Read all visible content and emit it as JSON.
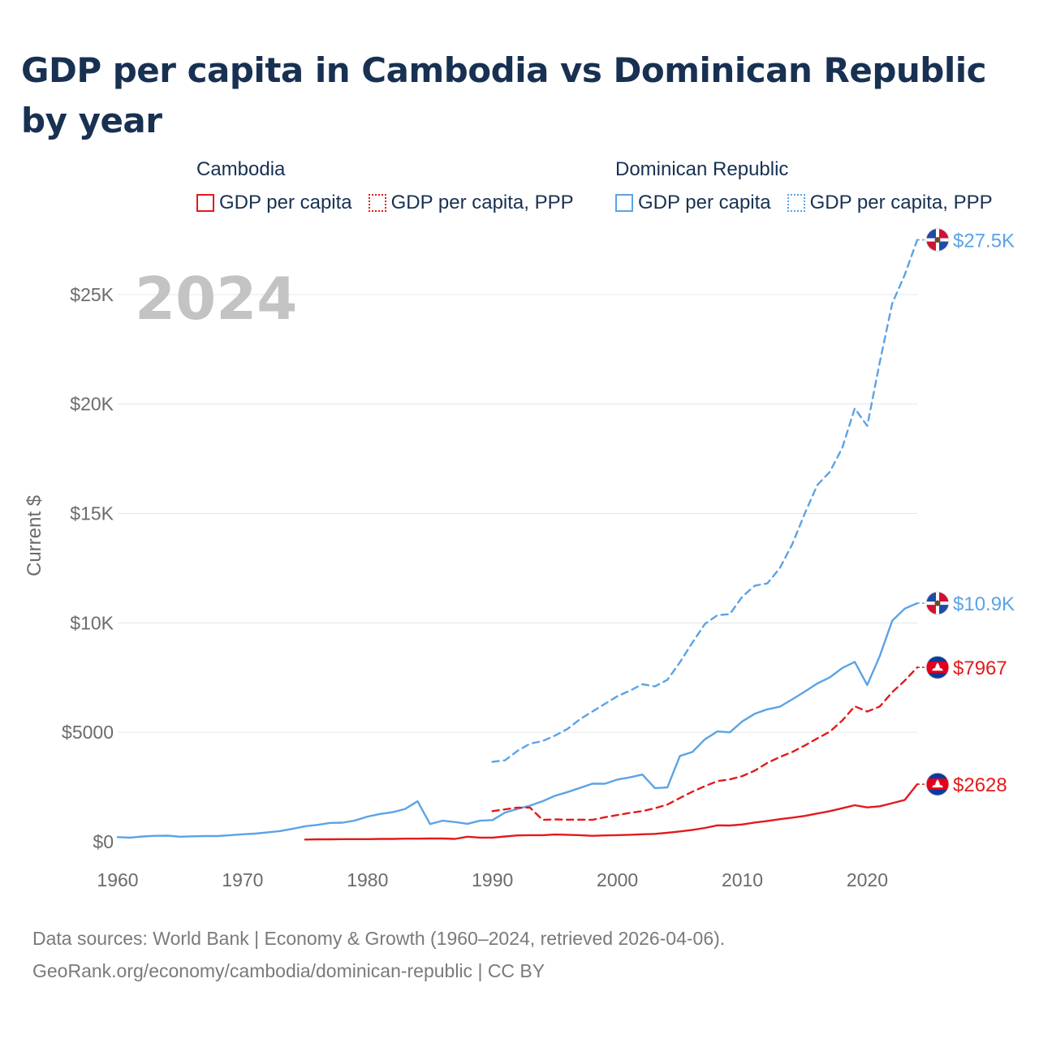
{
  "title": "GDP per capita in Cambodia vs Dominican Republic by year",
  "legend": {
    "groups": [
      {
        "title": "Cambodia",
        "items": [
          {
            "label": "GDP per capita",
            "color": "#e31a1c",
            "style": "solid"
          },
          {
            "label": "GDP per capita, PPP",
            "color": "#e31a1c",
            "style": "dotted"
          }
        ]
      },
      {
        "title": "Dominican Republic",
        "items": [
          {
            "label": "GDP per capita",
            "color": "#5ba3e6",
            "style": "solid"
          },
          {
            "label": "GDP per capita, PPP",
            "color": "#5ba3e6",
            "style": "dotted"
          }
        ]
      }
    ]
  },
  "year_label": "2024",
  "source": {
    "line1": "Data sources: World Bank | Economy & Growth (1960–2024, retrieved 2026-04-06).",
    "line2": "GeoRank.org/economy/cambodia/dominican-republic | CC BY"
  },
  "chart_data": {
    "type": "line",
    "title": "GDP per capita in Cambodia vs Dominican Republic by year",
    "xlabel": "",
    "ylabel": "Current $",
    "xlim": [
      1960,
      2024
    ],
    "ylim": [
      0,
      28000
    ],
    "xticks": [
      1960,
      1970,
      1980,
      1990,
      2000,
      2010,
      2020
    ],
    "xtick_labels": [
      "1960",
      "1970",
      "1980",
      "1990",
      "2000",
      "2010",
      "2020"
    ],
    "yticks": [
      0,
      5000,
      10000,
      15000,
      20000,
      25000
    ],
    "ytick_labels": [
      "$0",
      "$5000",
      "$10K",
      "$15K",
      "$20K",
      "$25K"
    ],
    "grid": true,
    "series": [
      {
        "name": "Dominican Republic GDP per capita, PPP",
        "country": "Dominican Republic",
        "color": "#5ba3e6",
        "dash": "dashed",
        "end_label": "$27.5K",
        "x": [
          1990,
          1991,
          1992,
          1993,
          1994,
          1995,
          1996,
          1997,
          1998,
          1999,
          2000,
          2001,
          2002,
          2003,
          2004,
          2005,
          2006,
          2007,
          2008,
          2009,
          2010,
          2011,
          2012,
          2013,
          2014,
          2015,
          2016,
          2017,
          2018,
          2019,
          2020,
          2021,
          2022,
          2023,
          2024
        ],
        "y": [
          3650,
          3720,
          4150,
          4480,
          4600,
          4850,
          5150,
          5600,
          5950,
          6300,
          6650,
          6900,
          7200,
          7100,
          7400,
          8200,
          9100,
          9950,
          10350,
          10400,
          11200,
          11700,
          11800,
          12500,
          13600,
          15000,
          16300,
          16900,
          18000,
          19800,
          19000,
          21900,
          24600,
          25900,
          27500
        ]
      },
      {
        "name": "Dominican Republic GDP per capita",
        "country": "Dominican Republic",
        "color": "#5ba3e6",
        "dash": "solid",
        "end_label": "$10.9K",
        "x": [
          1960,
          1961,
          1962,
          1963,
          1964,
          1965,
          1966,
          1967,
          1968,
          1969,
          1970,
          1971,
          1972,
          1973,
          1974,
          1975,
          1976,
          1977,
          1978,
          1979,
          1980,
          1981,
          1982,
          1983,
          1984,
          1985,
          1986,
          1987,
          1988,
          1989,
          1990,
          1991,
          1992,
          1993,
          1994,
          1995,
          1996,
          1997,
          1998,
          1999,
          2000,
          2001,
          2002,
          2003,
          2004,
          2005,
          2006,
          2007,
          2008,
          2009,
          2010,
          2011,
          2012,
          2013,
          2014,
          2015,
          2016,
          2017,
          2018,
          2019,
          2020,
          2021,
          2022,
          2023,
          2024
        ],
        "y": [
          210,
          190,
          240,
          270,
          280,
          230,
          250,
          260,
          260,
          300,
          340,
          370,
          430,
          490,
          590,
          710,
          770,
          860,
          870,
          970,
          1150,
          1270,
          1350,
          1500,
          1850,
          810,
          960,
          900,
          820,
          960,
          990,
          1330,
          1500,
          1650,
          1850,
          2100,
          2270,
          2460,
          2650,
          2650,
          2840,
          2940,
          3070,
          2450,
          2480,
          3920,
          4100,
          4680,
          5040,
          5000,
          5500,
          5850,
          6050,
          6170,
          6510,
          6860,
          7230,
          7510,
          7940,
          8220,
          7160,
          8480,
          10100,
          10650,
          10900
        ]
      },
      {
        "name": "Cambodia GDP per capita, PPP",
        "country": "Cambodia",
        "color": "#e31a1c",
        "dash": "dashed",
        "end_label": "$7967",
        "x": [
          1990,
          1991,
          1992,
          1993,
          1994,
          1995,
          1996,
          1997,
          1998,
          1999,
          2000,
          2001,
          2002,
          2003,
          2004,
          2005,
          2006,
          2007,
          2008,
          2009,
          2010,
          2011,
          2012,
          2013,
          2014,
          2015,
          2016,
          2017,
          2018,
          2019,
          2020,
          2021,
          2022,
          2023,
          2024
        ],
        "y": [
          1400,
          1480,
          1560,
          1560,
          1000,
          1020,
          1010,
          1010,
          1000,
          1120,
          1220,
          1320,
          1400,
          1530,
          1700,
          2000,
          2290,
          2540,
          2770,
          2850,
          3000,
          3250,
          3600,
          3870,
          4100,
          4400,
          4720,
          5030,
          5540,
          6190,
          5950,
          6180,
          6830,
          7360,
          7967
        ]
      },
      {
        "name": "Cambodia GDP per capita",
        "country": "Cambodia",
        "color": "#e31a1c",
        "dash": "solid",
        "end_label": "$2628",
        "x": [
          1975,
          1976,
          1977,
          1978,
          1979,
          1980,
          1981,
          1982,
          1983,
          1984,
          1985,
          1986,
          1987,
          1988,
          1989,
          1990,
          1991,
          1992,
          1993,
          1994,
          1995,
          1996,
          1997,
          1998,
          1999,
          2000,
          2001,
          2002,
          2003,
          2004,
          2005,
          2006,
          2007,
          2008,
          2009,
          2010,
          2011,
          2012,
          2013,
          2014,
          2015,
          2016,
          2017,
          2018,
          2019,
          2020,
          2021,
          2022,
          2023,
          2024
        ],
        "y": [
          100,
          110,
          110,
          120,
          120,
          120,
          130,
          130,
          140,
          140,
          150,
          150,
          130,
          230,
          190,
          190,
          240,
          290,
          300,
          300,
          330,
          320,
          300,
          270,
          290,
          300,
          320,
          340,
          360,
          410,
          470,
          540,
          630,
          750,
          740,
          790,
          880,
          950,
          1030,
          1100,
          1180,
          1290,
          1400,
          1530,
          1670,
          1570,
          1620,
          1760,
          1910,
          2628
        ]
      }
    ],
    "end_markers": [
      {
        "label": "$27.5K",
        "country": "Dominican Republic",
        "value": 27500,
        "flag": "dominican-republic-flag-icon"
      },
      {
        "label": "$10.9K",
        "country": "Dominican Republic",
        "value": 10900,
        "flag": "dominican-republic-flag-icon"
      },
      {
        "label": "$7967",
        "country": "Cambodia",
        "value": 7967,
        "flag": "cambodia-flag-icon"
      },
      {
        "label": "$2628",
        "country": "Cambodia",
        "value": 2628,
        "flag": "cambodia-flag-icon"
      }
    ]
  }
}
